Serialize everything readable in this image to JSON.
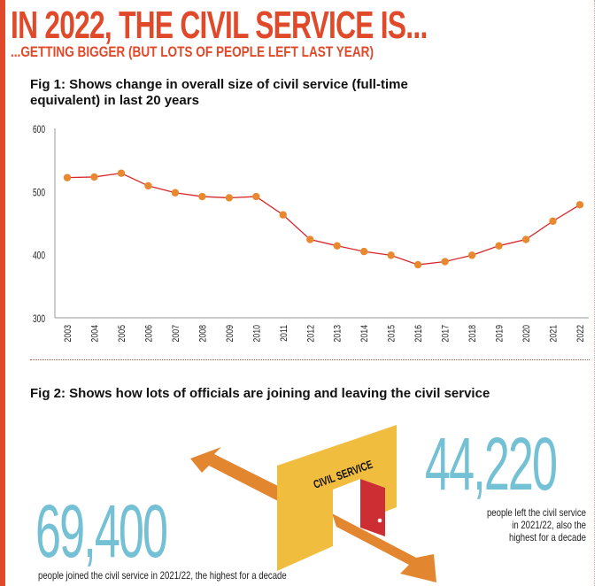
{
  "header": {
    "title": "IN 2022, THE CIVIL SERVICE IS...",
    "subtitle": "...GETTING BIGGER (BUT LOTS OF PEOPLE LEFT LAST YEAR)"
  },
  "fig1": {
    "heading": "Fig 1: Shows change in overall size of civil service (full-time equivalent) in last 20 years"
  },
  "fig2": {
    "heading": "Fig 2: Shows how lots of officials are joining and leaving the civil service",
    "wall_label": "CIVIL SERVICE",
    "joined": {
      "value": "69,400",
      "caption": "people joined the civil service in 2021/22, the highest for a decade"
    },
    "left": {
      "value": "44,220",
      "caption_lines": [
        "people left the civil service",
        "in 2021/22, also the",
        "highest for a decade"
      ]
    }
  },
  "colors": {
    "accent": "#e04a2a",
    "line": "#d8262a",
    "marker": "#e8892f",
    "number": "#74c0d4",
    "wall": "#f1bd3f",
    "door": "#cc2e34",
    "arrow": "#e38630"
  },
  "chart_data": {
    "type": "line",
    "x": [
      "2003",
      "2004",
      "2005",
      "2006",
      "2007",
      "2008",
      "2009",
      "2010",
      "2011",
      "2012",
      "2013",
      "2014",
      "2015",
      "2016",
      "2017",
      "2018",
      "2019",
      "2020",
      "2021",
      "2022"
    ],
    "series": [
      {
        "values": [
          522,
          523,
          529,
          509,
          498,
          492,
          490,
          492,
          463,
          424,
          414,
          405,
          399,
          384,
          389,
          399,
          414,
          424,
          453,
          479
        ]
      }
    ],
    "ylim": [
      300,
      600
    ],
    "yticks": [
      300,
      400,
      500,
      600
    ],
    "grid": false
  }
}
